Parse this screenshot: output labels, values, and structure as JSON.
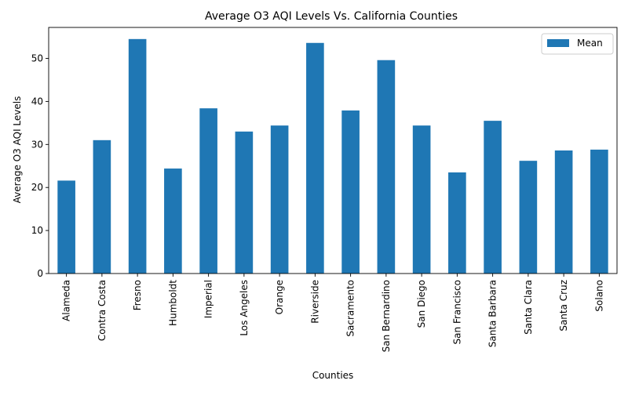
{
  "chart_data": {
    "type": "bar",
    "title": "Average O3 AQI Levels Vs. California Counties",
    "xlabel": "Counties",
    "ylabel": "Average O3 AQI Levels",
    "categories": [
      "Alameda",
      "Contra Costa",
      "Fresno",
      "Humboldt",
      "Imperial",
      "Los Angeles",
      "Orange",
      "Riverside",
      "Sacramento",
      "San Bernardino",
      "San Diego",
      "San Francisco",
      "Santa Barbara",
      "Santa Clara",
      "Santa Cruz",
      "Solano"
    ],
    "series": [
      {
        "name": "Mean",
        "color": "#1f77b4",
        "values": [
          21.6,
          31.0,
          54.5,
          24.4,
          38.4,
          33.0,
          34.4,
          53.6,
          37.9,
          49.6,
          34.4,
          23.5,
          35.5,
          26.2,
          28.6,
          28.8
        ]
      }
    ],
    "ylim": [
      0,
      57.2
    ],
    "yticks": [
      0,
      10,
      20,
      30,
      40,
      50
    ],
    "grid": false,
    "legend_position": "top-right"
  }
}
